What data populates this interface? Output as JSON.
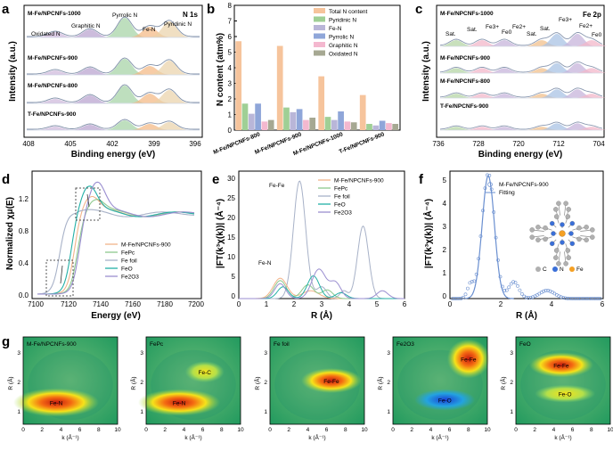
{
  "figure": {
    "a": {
      "label": "a",
      "title": "N 1s",
      "xlabel": "Binding energy (eV)",
      "ylabel": "Intensity (a.u.)",
      "xticks": [
        "408",
        "405",
        "402",
        "399",
        "396"
      ],
      "samples": [
        "M-Fe/NPCNFs-1000",
        "M-Fe/NPCNFs-900",
        "M-Fe/NPCNFs-800",
        "T-Fe/NPCNFs-900"
      ],
      "peaks": [
        "Oxidated N",
        "Graphitic N",
        "Pyrrolic N",
        "Fe-N",
        "Pyridinic N"
      ]
    },
    "c": {
      "label": "c",
      "title": "Fe 2p",
      "xlabel": "Binding energy (eV)",
      "ylabel": "Intensity (a.u.)",
      "xticks": [
        "736",
        "728",
        "720",
        "712",
        "704"
      ],
      "samples": [
        "M-Fe/NPCNFs-1000",
        "M-Fe/NPCNFs-900",
        "M-Fe/NPCNFs-800",
        "T-Fe/NPCNFs-900"
      ],
      "peak_labels": [
        "Sat.",
        "Sat.",
        "Fe3+",
        "Fe0",
        "Fe2+",
        "Sat.",
        "Sat.",
        "Fe3+",
        "Fe2+",
        "Fe0"
      ]
    },
    "d": {
      "label": "d",
      "xlabel": "Energy (eV)",
      "ylabel": "Normalized χμ(E)",
      "xticks": [
        "7100",
        "7120",
        "7140",
        "7160",
        "7180",
        "7200"
      ],
      "yticks": [
        "0.0",
        "0.4",
        "0.8",
        "1.2"
      ]
    },
    "e": {
      "label": "e",
      "xlabel": "R (Å)",
      "ylabel": "|FT(k³χ(k))| (Å⁻⁴)",
      "xticks": [
        "0",
        "1",
        "2",
        "3",
        "4",
        "5",
        "6"
      ],
      "yticks": [
        "0",
        "5",
        "10",
        "15",
        "20",
        "25",
        "30"
      ],
      "annotations": [
        "Fe-Fe",
        "Fe-N"
      ]
    },
    "f": {
      "label": "f",
      "xlabel": "R (Å)",
      "ylabel": "|FT(k³χ(k))| (Å⁻⁴)",
      "xticks": [
        "0",
        "2",
        "4",
        "6"
      ],
      "yticks": [
        "0",
        "1",
        "2",
        "3",
        "4",
        "5"
      ],
      "legend": [
        "M-Fe/NPCNFs-900",
        "Fitting"
      ],
      "atoms": [
        "C",
        "N",
        "Fe"
      ]
    },
    "g": {
      "label": "g",
      "xlabel": "k (Å⁻¹)",
      "ylabel": "R (Å)",
      "xticks": [
        "0",
        "2",
        "4",
        "6",
        "8",
        "10"
      ],
      "yticks": [
        "1",
        "2",
        "3"
      ],
      "maps": [
        {
          "title": "M-Fe/NPCNFs-900",
          "features": [
            "Fe-N"
          ]
        },
        {
          "title": "FePc",
          "features": [
            "Fe-N",
            "Fe-C"
          ]
        },
        {
          "title": "Fe foil",
          "features": [
            "Fe-Fe"
          ]
        },
        {
          "title": "Fe2O3",
          "features": [
            "Fe-Fe",
            "Fe-O"
          ]
        },
        {
          "title": "FeO",
          "features": [
            "Fe-Fe",
            "Fe-O"
          ]
        }
      ]
    }
  },
  "legend_de": [
    {
      "name": "M-Fe/NPCNFs-900",
      "color": "#f2b38a"
    },
    {
      "name": "FePc",
      "color": "#8dc98d"
    },
    {
      "name": "Fe foil",
      "color": "#a8b2c8"
    },
    {
      "name": "FeO",
      "color": "#23b0a6"
    },
    {
      "name": "Fe2O3",
      "color": "#9a8ed0"
    }
  ],
  "chart_data": [
    {
      "panel": "b",
      "type": "bar",
      "title": "",
      "xlabel": "",
      "ylabel": "N content (atm%)",
      "ylim": [
        0,
        8
      ],
      "categories": [
        "M-Fe/NPCNFs-800",
        "M-Fe/NPCNFs-900",
        "M-Fe/NPCNFs-1000",
        "T-Fe/NPCNFs-900"
      ],
      "yticks": [
        "0",
        "1",
        "2",
        "3",
        "4",
        "5",
        "6",
        "7",
        "8"
      ],
      "series": [
        {
          "name": "Total N content",
          "color": "#f6c49c",
          "values": [
            5.7,
            5.4,
            3.45,
            2.25
          ]
        },
        {
          "name": "Pyridinic N",
          "color": "#9fcf95",
          "values": [
            1.7,
            1.45,
            0.85,
            0.4
          ]
        },
        {
          "name": "Fe-N",
          "color": "#b9b6d8",
          "values": [
            1.05,
            1.15,
            0.65,
            0.3
          ]
        },
        {
          "name": "Pyrrolic N",
          "color": "#8fa6d9",
          "values": [
            1.7,
            1.35,
            1.2,
            0.6
          ]
        },
        {
          "name": "Graphitic N",
          "color": "#f4b8cf",
          "values": [
            0.55,
            0.65,
            0.55,
            0.45
          ]
        },
        {
          "name": "Oxidated N",
          "color": "#a6a892",
          "values": [
            0.65,
            0.8,
            0.5,
            0.4
          ]
        }
      ]
    }
  ]
}
